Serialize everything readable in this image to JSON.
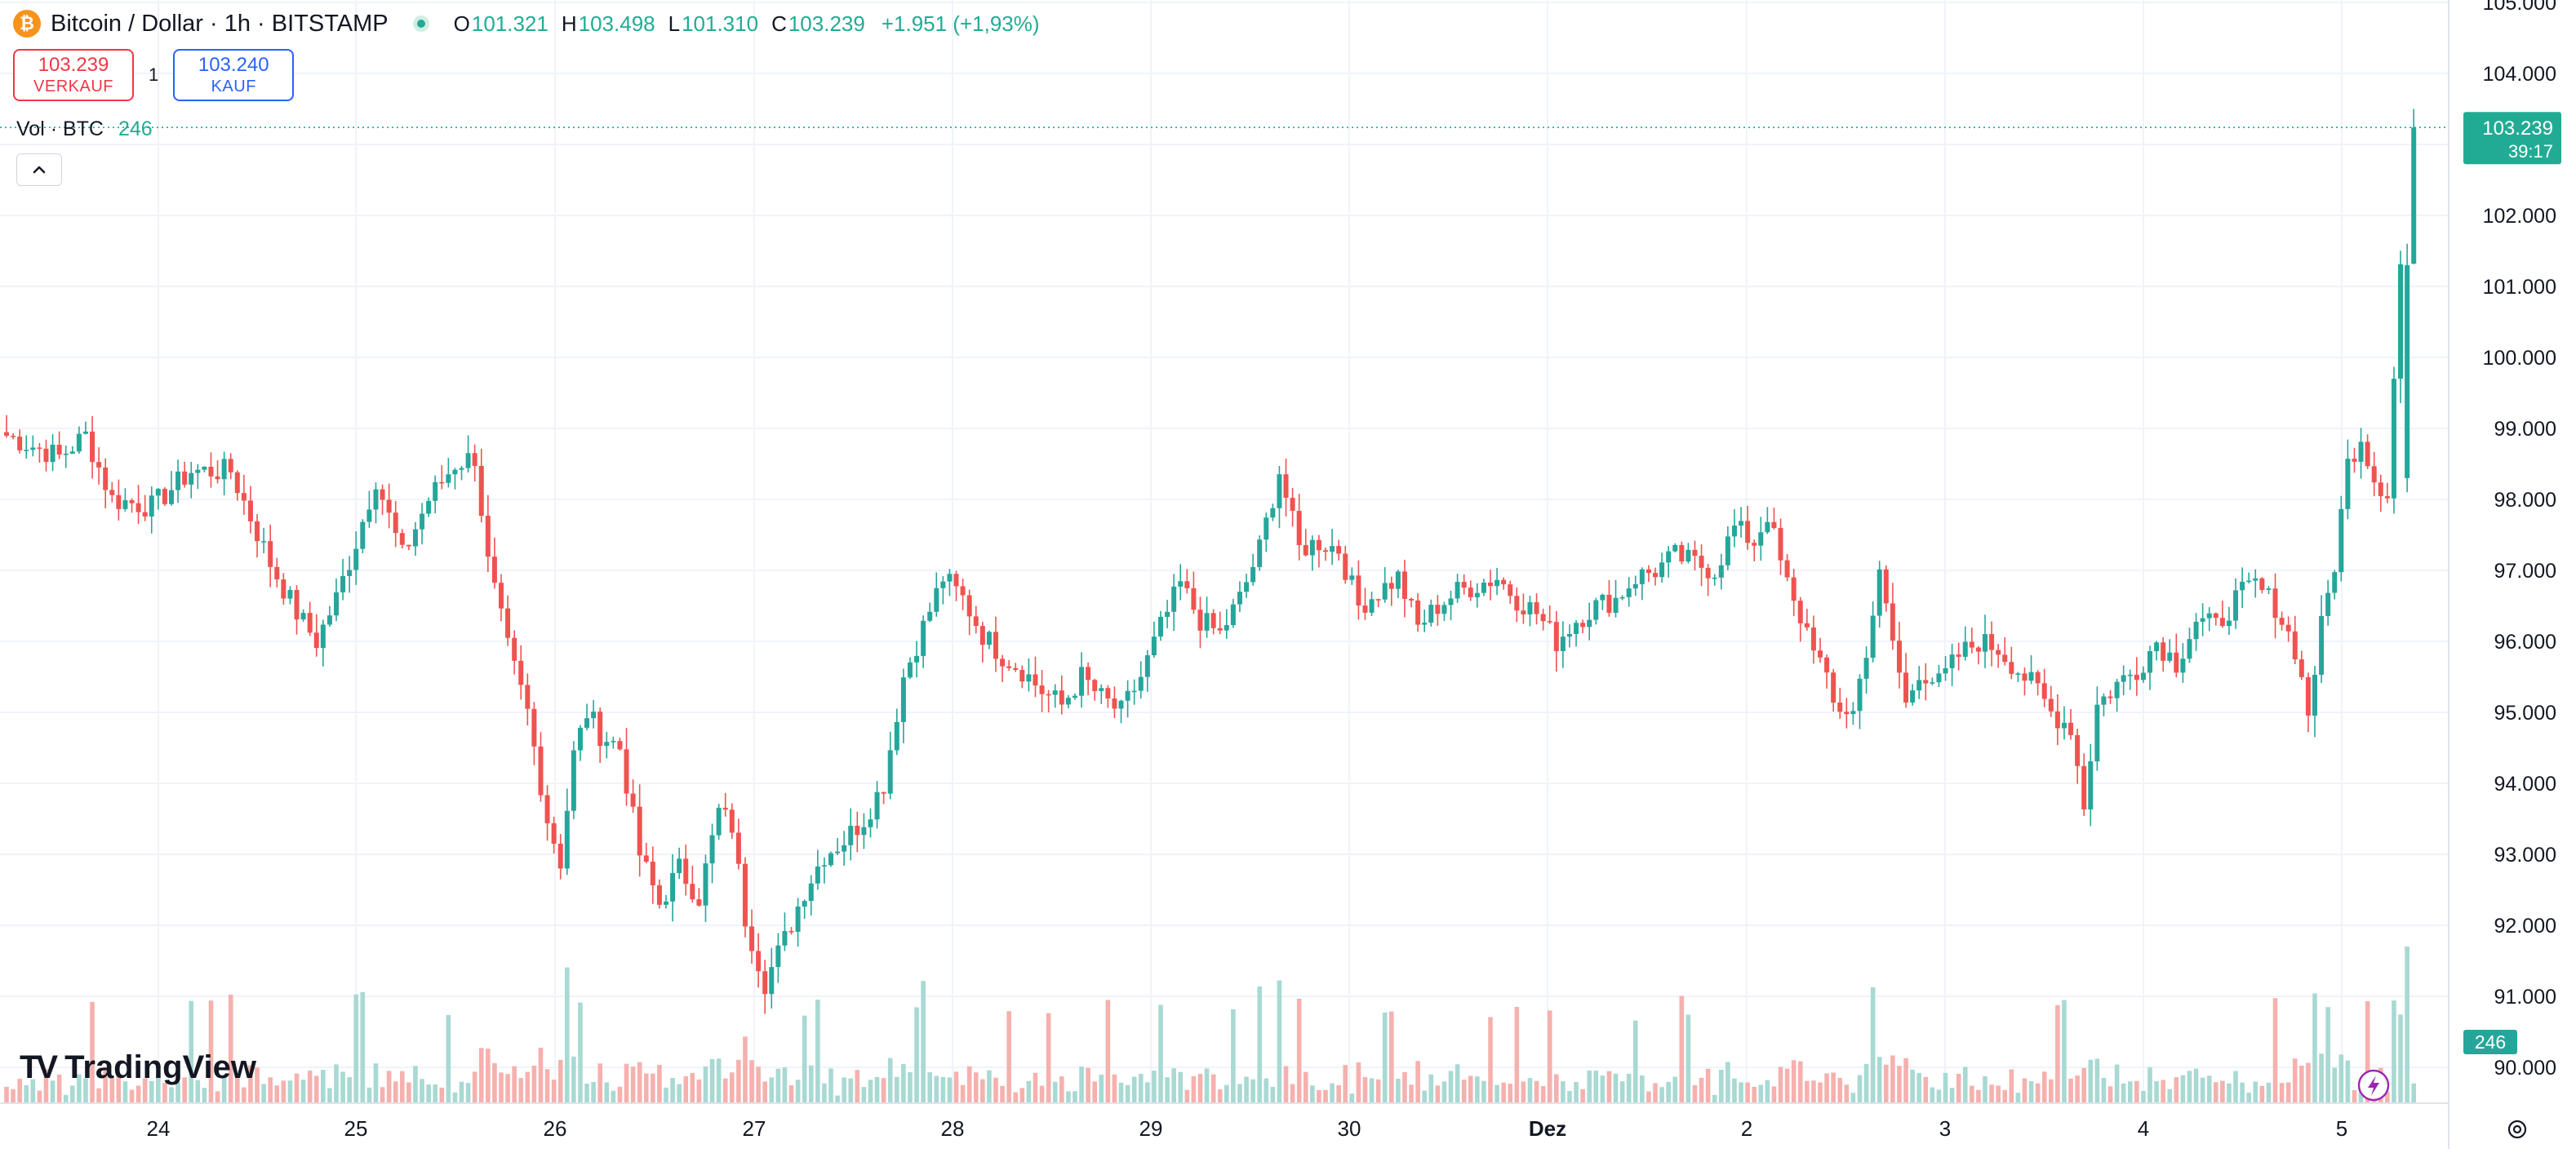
{
  "header": {
    "symbol_title": "Bitcoin / Dollar · 1h · BITSTAMP",
    "open_label": "O",
    "open_value": "101.321",
    "high_label": "H",
    "high_value": "103.498",
    "low_label": "L",
    "low_value": "101.310",
    "close_label": "C",
    "close_value": "103.239",
    "change": "+1.951 (+1,93%)"
  },
  "trade": {
    "sell_price": "103.239",
    "sell_label": "VERKAUF",
    "spread": "1",
    "buy_price": "103.240",
    "buy_label": "KAUF"
  },
  "volume": {
    "label": "Vol · BTC",
    "value": "246"
  },
  "brand": {
    "name": "TradingView",
    "mark": "TV"
  },
  "price_tag": {
    "price": "103.239",
    "countdown": "39:17"
  },
  "volume_tag": "246",
  "colors": {
    "up": "#26a69a",
    "down": "#ef5350",
    "vol_up": "#a8d9d3",
    "vol_down": "#f5b1ae",
    "price_line": "#22ab94"
  },
  "icons": {
    "btc": "bitcoin-icon",
    "collapse": "chevron-up-icon",
    "lightning": "lightning-icon",
    "settings": "gear-icon"
  },
  "chart_data": {
    "type": "candlestick",
    "title": "Bitcoin / Dollar · 1h · BITSTAMP",
    "interval": "1h",
    "y_ticks": [
      "90.000",
      "91.000",
      "92.000",
      "93.000",
      "94.000",
      "95.000",
      "96.000",
      "97.000",
      "98.000",
      "99.000",
      "100.000",
      "101.000",
      "102.000",
      "103.000",
      "104.000",
      "105.000"
    ],
    "ylim": [
      89.5,
      105.0
    ],
    "x_tick_labels": [
      {
        "label": "24",
        "bold": false
      },
      {
        "label": "25",
        "bold": false
      },
      {
        "label": "26",
        "bold": false
      },
      {
        "label": "27",
        "bold": false
      },
      {
        "label": "28",
        "bold": false
      },
      {
        "label": "29",
        "bold": false
      },
      {
        "label": "30",
        "bold": false
      },
      {
        "label": "Dez",
        "bold": true
      },
      {
        "label": "2",
        "bold": false
      },
      {
        "label": "3",
        "bold": false
      },
      {
        "label": "4",
        "bold": false
      },
      {
        "label": "5",
        "bold": false
      }
    ],
    "grid": true,
    "last_price": 103.239,
    "anchors": [
      [
        0,
        98.9
      ],
      [
        8,
        98.6
      ],
      [
        12,
        98.9
      ],
      [
        16,
        98.0
      ],
      [
        22,
        97.9
      ],
      [
        28,
        98.4
      ],
      [
        34,
        98.4
      ],
      [
        40,
        97.1
      ],
      [
        44,
        96.4
      ],
      [
        47,
        96.0
      ],
      [
        50,
        96.6
      ],
      [
        53,
        97.4
      ],
      [
        56,
        98.3
      ],
      [
        60,
        97.2
      ],
      [
        64,
        98.0
      ],
      [
        68,
        98.5
      ],
      [
        71,
        98.6
      ],
      [
        73,
        97.1
      ],
      [
        76,
        95.9
      ],
      [
        79,
        95.0
      ],
      [
        82,
        93.5
      ],
      [
        84,
        92.9
      ],
      [
        86,
        94.4
      ],
      [
        88,
        95.0
      ],
      [
        90,
        94.7
      ],
      [
        93,
        94.5
      ],
      [
        96,
        93.0
      ],
      [
        99,
        92.3
      ],
      [
        102,
        92.8
      ],
      [
        105,
        92.4
      ],
      [
        108,
        93.6
      ],
      [
        110,
        93.4
      ],
      [
        112,
        92.1
      ],
      [
        115,
        91.2
      ],
      [
        118,
        91.8
      ],
      [
        121,
        92.5
      ],
      [
        124,
        93.0
      ],
      [
        127,
        93.2
      ],
      [
        130,
        93.5
      ],
      [
        133,
        94.0
      ],
      [
        136,
        95.5
      ],
      [
        139,
        96.2
      ],
      [
        142,
        96.9
      ],
      [
        145,
        96.6
      ],
      [
        148,
        96.1
      ],
      [
        151,
        95.8
      ],
      [
        154,
        95.6
      ],
      [
        157,
        95.3
      ],
      [
        160,
        95.1
      ],
      [
        163,
        95.5
      ],
      [
        166,
        95.2
      ],
      [
        169,
        95.0
      ],
      [
        172,
        95.5
      ],
      [
        175,
        96.2
      ],
      [
        178,
        96.8
      ],
      [
        181,
        96.3
      ],
      [
        184,
        96.1
      ],
      [
        187,
        96.6
      ],
      [
        190,
        97.3
      ],
      [
        193,
        98.4
      ],
      [
        196,
        97.3
      ],
      [
        199,
        97.4
      ],
      [
        202,
        97.3
      ],
      [
        205,
        96.5
      ],
      [
        208,
        96.7
      ],
      [
        211,
        96.9
      ],
      [
        214,
        96.2
      ],
      [
        217,
        96.5
      ],
      [
        220,
        96.7
      ],
      [
        223,
        96.8
      ],
      [
        226,
        96.9
      ],
      [
        229,
        96.6
      ],
      [
        232,
        96.4
      ],
      [
        235,
        96.0
      ],
      [
        238,
        96.3
      ],
      [
        241,
        96.5
      ],
      [
        244,
        96.6
      ],
      [
        247,
        96.9
      ],
      [
        250,
        97.0
      ],
      [
        253,
        97.2
      ],
      [
        256,
        97.1
      ],
      [
        259,
        97.0
      ],
      [
        262,
        97.6
      ],
      [
        265,
        97.4
      ],
      [
        267,
        97.8
      ],
      [
        269,
        97.1
      ],
      [
        271,
        96.5
      ],
      [
        274,
        96.0
      ],
      [
        277,
        95.1
      ],
      [
        280,
        95.0
      ],
      [
        282,
        95.9
      ],
      [
        284,
        96.9
      ],
      [
        286,
        96.0
      ],
      [
        288,
        95.1
      ],
      [
        290,
        95.6
      ],
      [
        293,
        95.4
      ],
      [
        296,
        95.8
      ],
      [
        299,
        96.0
      ],
      [
        302,
        95.9
      ],
      [
        305,
        95.6
      ],
      [
        308,
        95.3
      ],
      [
        310,
        95.0
      ],
      [
        313,
        94.8
      ],
      [
        315,
        93.7
      ],
      [
        317,
        95.1
      ],
      [
        320,
        95.4
      ],
      [
        323,
        95.6
      ],
      [
        326,
        96.0
      ],
      [
        329,
        95.7
      ],
      [
        332,
        96.3
      ],
      [
        335,
        96.2
      ],
      [
        338,
        96.6
      ],
      [
        341,
        96.8
      ],
      [
        344,
        96.5
      ],
      [
        347,
        95.9
      ],
      [
        349,
        95.0
      ],
      [
        351,
        96.2
      ],
      [
        353,
        97.1
      ],
      [
        355,
        98.5
      ],
      [
        357,
        98.9
      ],
      [
        359,
        98.3
      ],
      [
        361,
        98.1
      ],
      [
        363,
        101.3
      ],
      [
        365,
        103.24
      ]
    ],
    "volume_range": [
      0,
      5000
    ]
  }
}
